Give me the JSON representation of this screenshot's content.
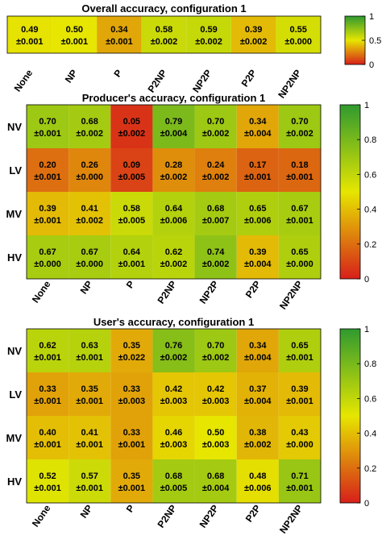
{
  "chart_data": [
    {
      "type": "heatmap",
      "title": "Overall accuracy, configuration 1",
      "rows": [
        ""
      ],
      "columns": [
        "None",
        "NP",
        "P",
        "P2NP",
        "NP2P",
        "P2P",
        "NP2NP"
      ],
      "values": [
        [
          0.49,
          0.5,
          0.34,
          0.58,
          0.59,
          0.39,
          0.55
        ]
      ],
      "errors": [
        [
          "±0.001",
          "±0.001",
          "±0.001",
          "±0.002",
          "±0.002",
          "±0.002",
          "±0.000"
        ]
      ],
      "colorbar": {
        "range": [
          0,
          1
        ],
        "ticks": [
          "0",
          "0.5",
          "1"
        ],
        "colors": [
          "#d71f1a",
          "#e6e600",
          "#2f9a2f"
        ]
      }
    },
    {
      "type": "heatmap",
      "title": "Producer's accuracy, configuration 1",
      "rows": [
        "NV",
        "LV",
        "MV",
        "HV"
      ],
      "columns": [
        "None",
        "NP",
        "P",
        "P2NP",
        "NP2P",
        "P2P",
        "NP2NP"
      ],
      "values": [
        [
          0.7,
          0.68,
          0.05,
          0.79,
          0.7,
          0.34,
          0.7
        ],
        [
          0.2,
          0.26,
          0.09,
          0.28,
          0.24,
          0.17,
          0.18
        ],
        [
          0.39,
          0.41,
          0.58,
          0.64,
          0.68,
          0.65,
          0.67
        ],
        [
          0.67,
          0.67,
          0.64,
          0.62,
          0.74,
          0.39,
          0.65
        ]
      ],
      "errors": [
        [
          "±0.001",
          "±0.002",
          "±0.002",
          "±0.004",
          "±0.002",
          "±0.004",
          "±0.002"
        ],
        [
          "±0.001",
          "±0.000",
          "±0.005",
          "±0.002",
          "±0.002",
          "±0.001",
          "±0.001"
        ],
        [
          "±0.001",
          "±0.002",
          "±0.005",
          "±0.006",
          "±0.007",
          "±0.006",
          "±0.001"
        ],
        [
          "±0.000",
          "±0.000",
          "±0.001",
          "±0.002",
          "±0.002",
          "±0.004",
          "±0.000"
        ]
      ],
      "colorbar": {
        "range": [
          0,
          1
        ],
        "ticks": [
          "0",
          "0.2",
          "0.4",
          "0.6",
          "0.8",
          "1"
        ],
        "colors": [
          "#d71f1a",
          "#e6e600",
          "#2f9a2f"
        ]
      }
    },
    {
      "type": "heatmap",
      "title": "User's accuracy, configuration 1",
      "rows": [
        "NV",
        "LV",
        "MV",
        "HV"
      ],
      "columns": [
        "None",
        "NP",
        "P",
        "P2NP",
        "NP2P",
        "P2P",
        "NP2NP"
      ],
      "values": [
        [
          0.62,
          0.63,
          0.35,
          0.76,
          0.7,
          0.34,
          0.65
        ],
        [
          0.33,
          0.35,
          0.33,
          0.42,
          0.42,
          0.37,
          0.39
        ],
        [
          0.4,
          0.41,
          0.33,
          0.46,
          0.5,
          0.38,
          0.43
        ],
        [
          0.52,
          0.57,
          0.35,
          0.68,
          0.68,
          0.48,
          0.71
        ]
      ],
      "errors": [
        [
          "±0.001",
          "±0.001",
          "±0.022",
          "±0.002",
          "±0.002",
          "±0.004",
          "±0.001"
        ],
        [
          "±0.001",
          "±0.001",
          "±0.003",
          "±0.003",
          "±0.003",
          "±0.004",
          "±0.001"
        ],
        [
          "±0.001",
          "±0.001",
          "±0.001",
          "±0.003",
          "±0.003",
          "±0.002",
          "±0.000"
        ],
        [
          "±0.001",
          "±0.001",
          "±0.001",
          "±0.005",
          "±0.004",
          "±0.006",
          "±0.001"
        ]
      ],
      "colorbar": {
        "range": [
          0,
          1
        ],
        "ticks": [
          "0",
          "0.2",
          "0.4",
          "0.6",
          "0.8",
          "1"
        ],
        "colors": [
          "#d71f1a",
          "#e6e600",
          "#2f9a2f"
        ]
      }
    }
  ]
}
